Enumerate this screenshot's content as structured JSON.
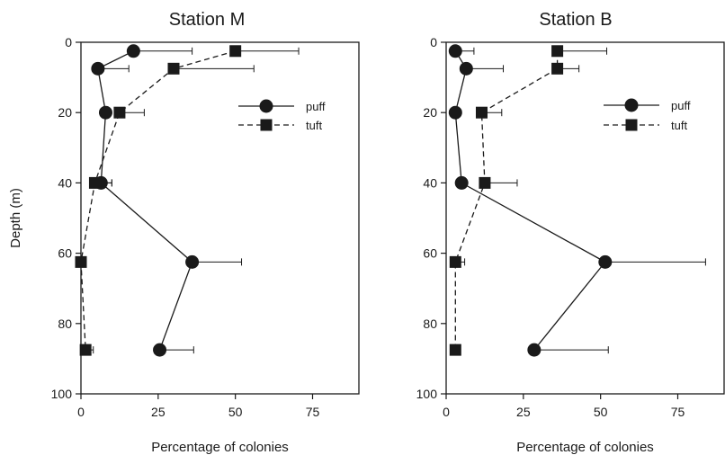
{
  "chart_data": [
    {
      "type": "line",
      "title": "Station M",
      "xlabel": "Percentage of colonies",
      "ylabel": "Depth (m)",
      "xlim": [
        0,
        90
      ],
      "ylim": [
        0,
        100
      ],
      "y_inverted": true,
      "xticks": [
        "0",
        "25",
        "50",
        "75"
      ],
      "yticks": [
        "0",
        "20",
        "40",
        "60",
        "80",
        "100"
      ],
      "legend_position": "upper-right",
      "grid": false,
      "series": [
        {
          "name": "puff",
          "marker": "circle",
          "line_style": "solid",
          "points": [
            {
              "y": 2.5,
              "x": 17,
              "err": 19
            },
            {
              "y": 7.5,
              "x": 5.5,
              "err": 10
            },
            {
              "y": 20,
              "x": 8,
              "err": 0
            },
            {
              "y": 40,
              "x": 6.5,
              "err": 3.5
            },
            {
              "y": 62.5,
              "x": 36,
              "err": 16
            },
            {
              "y": 87.5,
              "x": 25.5,
              "err": 11
            }
          ]
        },
        {
          "name": "tuft",
          "marker": "square",
          "line_style": "dashed",
          "points": [
            {
              "y": 2.5,
              "x": 50,
              "err": 20.5
            },
            {
              "y": 7.5,
              "x": 30,
              "err": 26
            },
            {
              "y": 20,
              "x": 12.5,
              "err": 8
            },
            {
              "y": 40,
              "x": 4.5,
              "err": 5.5
            },
            {
              "y": 62.5,
              "x": 0,
              "err": 0
            },
            {
              "y": 87.5,
              "x": 1.5,
              "err": 2.5
            }
          ]
        }
      ]
    },
    {
      "type": "line",
      "title": "Station B",
      "xlabel": "Percentage of colonies",
      "ylabel": "",
      "xlim": [
        0,
        90
      ],
      "ylim": [
        0,
        100
      ],
      "y_inverted": true,
      "xticks": [
        "0",
        "25",
        "50",
        "75"
      ],
      "yticks": [
        "0",
        "20",
        "40",
        "60",
        "80",
        "100"
      ],
      "legend_position": "upper-right",
      "grid": false,
      "series": [
        {
          "name": "puff",
          "marker": "circle",
          "line_style": "solid",
          "points": [
            {
              "y": 2.5,
              "x": 3,
              "err": 6
            },
            {
              "y": 7.5,
              "x": 6.5,
              "err": 12
            },
            {
              "y": 20,
              "x": 3,
              "err": 0
            },
            {
              "y": 40,
              "x": 5,
              "err": 0
            },
            {
              "y": 62.5,
              "x": 51.5,
              "err": 32.5
            },
            {
              "y": 87.5,
              "x": 28.5,
              "err": 24
            }
          ]
        },
        {
          "name": "tuft",
          "marker": "square",
          "line_style": "dashed",
          "points": [
            {
              "y": 2.5,
              "x": 36,
              "err": 16
            },
            {
              "y": 7.5,
              "x": 36,
              "err": 7
            },
            {
              "y": 20,
              "x": 11.5,
              "err": 6.5
            },
            {
              "y": 40,
              "x": 12.5,
              "err": 10.5
            },
            {
              "y": 62.5,
              "x": 3,
              "err": 3
            },
            {
              "y": 87.5,
              "x": 3,
              "err": 0
            }
          ]
        }
      ]
    }
  ]
}
